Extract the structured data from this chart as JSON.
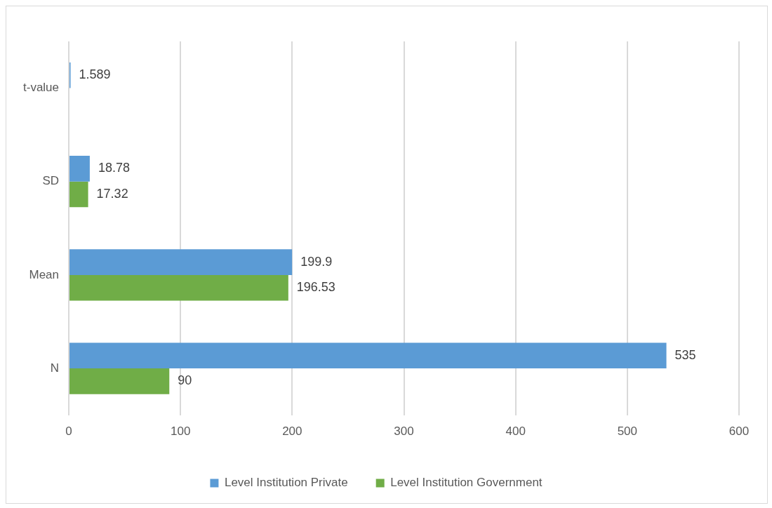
{
  "chart_data": {
    "type": "bar",
    "orientation": "horizontal",
    "categories": [
      "t-value",
      "SD",
      "Mean",
      "N"
    ],
    "series": [
      {
        "name": "Level Institution Private",
        "color": "#5b9bd5",
        "values": [
          1.589,
          18.78,
          199.9,
          535
        ]
      },
      {
        "name": "Level Institution Government",
        "color": "#70ad47",
        "values": [
          null,
          17.32,
          196.53,
          90
        ]
      }
    ],
    "xlim": [
      0,
      600
    ],
    "xticks": [
      0,
      100,
      200,
      300,
      400,
      500,
      600
    ],
    "grid": "x",
    "legend": "bottom",
    "data_labels": true
  }
}
